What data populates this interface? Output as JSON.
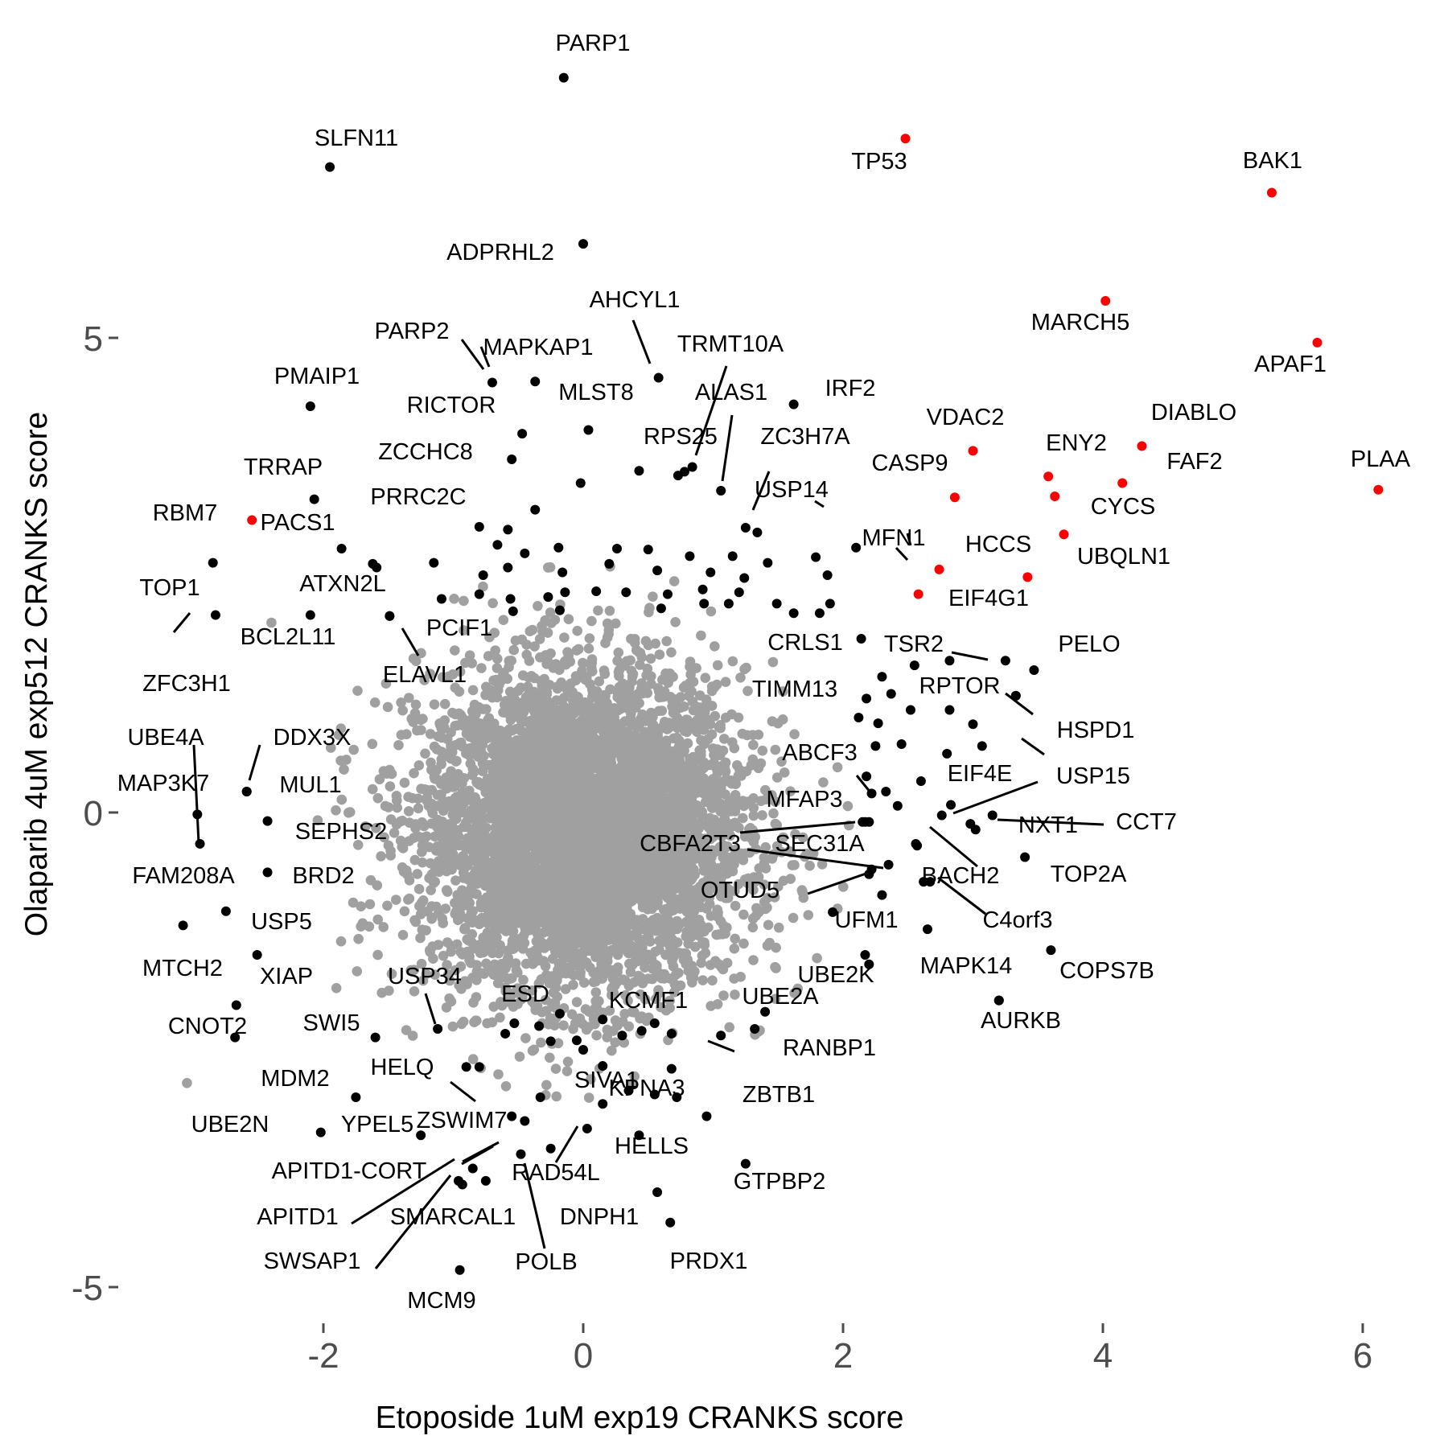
{
  "chart_data": {
    "type": "scatter",
    "xlabel": "Etoposide 1uM exp19 CRANKS score",
    "ylabel": "Olaparib 4uM exp512 CRANKS score",
    "xlim": [
      -3.2,
      6.4
    ],
    "ylim": [
      -5.4,
      8.0
    ],
    "x_ticks": [
      -2,
      0,
      2,
      4,
      6
    ],
    "x_tick_labels": [
      "-2",
      "0",
      "2",
      "4",
      "6"
    ],
    "y_ticks": [
      -5,
      0,
      5
    ],
    "y_tick_labels": [
      "-5",
      "0",
      "5"
    ],
    "grid": false,
    "legend": "none",
    "colors": {
      "background": "#ffffff",
      "significant": "#000000",
      "highlight": "#ff0000",
      "background_points": "#a0a0a0",
      "tick": "#4d4d4d"
    },
    "background_cloud": {
      "description_units": "ellipse of gray non-significant genes centered near origin",
      "center": [
        0.0,
        -0.2
      ],
      "sd": [
        0.62,
        0.85
      ],
      "count": 5200,
      "extra_points": [
        [
          -3.05,
          -2.85
        ],
        [
          -1.9,
          -1.85
        ],
        [
          -2.4,
          2.0
        ],
        [
          -1.55,
          -1.9
        ]
      ]
    },
    "series": [
      {
        "color": "#ff0000",
        "points": [
          {
            "label": "TP53",
            "x": 2.48,
            "y": 7.1
          },
          {
            "label": "BAK1",
            "x": 5.3,
            "y": 6.53
          },
          {
            "label": "MARCH5",
            "x": 4.02,
            "y": 5.39
          },
          {
            "label": "APAF1",
            "x": 5.65,
            "y": 4.95
          },
          {
            "label": "DIABLO",
            "x": 4.3,
            "y": 3.86
          },
          {
            "label": "VDAC2",
            "x": 3.0,
            "y": 3.81
          },
          {
            "label": "ENY2",
            "x": 3.58,
            "y": 3.54
          },
          {
            "label": "FAF2",
            "x": 4.15,
            "y": 3.47
          },
          {
            "label": "PLAA",
            "x": 6.12,
            "y": 3.4
          },
          {
            "label": "CASP9",
            "x": 2.86,
            "y": 3.32
          },
          {
            "label": "CYCS",
            "x": 3.63,
            "y": 3.33
          },
          {
            "label": "UBQLN1",
            "x": 3.7,
            "y": 2.93
          },
          {
            "label": "HCCS",
            "x": 3.42,
            "y": 2.48
          },
          {
            "label": "MFN1",
            "x": 2.74,
            "y": 2.56
          },
          {
            "label": "EIF4G1",
            "x": 2.58,
            "y": 2.3
          },
          {
            "label": "RBM7",
            "x": -2.55,
            "y": 3.08
          }
        ]
      },
      {
        "color": "#000000",
        "points": [
          {
            "label": "PARP1",
            "x": -0.15,
            "y": 7.74
          },
          {
            "label": "SLFN11",
            "x": -1.95,
            "y": 6.8
          },
          {
            "label": "ADPRHL2",
            "x": 0.0,
            "y": 5.99
          },
          {
            "label": "AHCYL1",
            "x": 0.58,
            "y": 4.58
          },
          {
            "label": "PARP2",
            "x": -0.7,
            "y": 4.53
          },
          {
            "label": "MAPKAP1",
            "x": -0.37,
            "y": 4.54
          },
          {
            "label": "PMAIP1",
            "x": -2.1,
            "y": 4.28
          },
          {
            "label": "IRF2",
            "x": 1.62,
            "y": 4.3
          },
          {
            "label": "RICTOR",
            "x": -0.47,
            "y": 3.99
          },
          {
            "label": "MLST8",
            "x": 0.04,
            "y": 4.03
          },
          {
            "label": "ZCCHC8",
            "x": -0.55,
            "y": 3.72
          },
          {
            "label": "RPS25",
            "x": 0.78,
            "y": 3.59
          },
          {
            "label": "TRMT10A",
            "x": 0.84,
            "y": 3.64
          },
          {
            "label": "ALAS1",
            "x": 1.06,
            "y": 3.39
          },
          {
            "label": "TRRAP",
            "x": -2.07,
            "y": 3.3
          },
          {
            "label": "PRRC2C",
            "x": -0.8,
            "y": 3.01
          },
          {
            "label": "USP14",
            "x": 1.25,
            "y": 3.0
          },
          {
            "label": "ZC3H7A",
            "x": 1.34,
            "y": 2.95
          },
          {
            "label": "PACS1",
            "x": -1.86,
            "y": 2.78
          },
          {
            "label": "TOP1",
            "x": -2.85,
            "y": 2.63
          },
          {
            "label": "ATXN2L",
            "x": -1.49,
            "y": 2.07
          },
          {
            "label": "ZFC3H1",
            "x": -2.83,
            "y": 2.08
          },
          {
            "label": "PCIF1",
            "x": -1.09,
            "y": 2.25
          },
          {
            "label": "CRLS1",
            "x": 1.82,
            "y": 2.1
          },
          {
            "label": "TSR2",
            "x": 3.25,
            "y": 1.6
          },
          {
            "label": "PELO",
            "x": 3.47,
            "y": 1.5
          },
          {
            "label": "RPTOR",
            "x": 3.33,
            "y": 1.23
          },
          {
            "label": "TIMM13",
            "x": 2.18,
            "y": 1.2
          },
          {
            "label": "ABCF3",
            "x": 2.22,
            "y": 0.2
          },
          {
            "label": "EIF4E",
            "x": 2.6,
            "y": 0.33
          },
          {
            "label": "USP15",
            "x": 2.76,
            "y": -0.03
          },
          {
            "label": "CCT7",
            "x": 3.15,
            "y": -0.03
          },
          {
            "label": "NXT1",
            "x": 3.02,
            "y": -0.18
          },
          {
            "label": "UBE4A",
            "x": -2.97,
            "y": -0.02
          },
          {
            "label": "MAP3K7",
            "x": -2.59,
            "y": 0.22
          },
          {
            "label": "DDX3X",
            "x": -2.59,
            "y": 0.22
          },
          {
            "label": "MUL1",
            "x": -2.43,
            "y": -0.09
          },
          {
            "label": "MFAP3",
            "x": 2.2,
            "y": -0.1
          },
          {
            "label": "CBFA2T3",
            "x": 2.15,
            "y": -0.1
          },
          {
            "label": "BACH2",
            "x": 2.56,
            "y": -0.33
          },
          {
            "label": "SEC31A",
            "x": 2.35,
            "y": -0.55
          },
          {
            "label": "TOP2A",
            "x": 3.4,
            "y": -0.47
          },
          {
            "label": "FAM208A",
            "x": -2.95,
            "y": -0.33
          },
          {
            "label": "SEPHS2",
            "x": -2.43,
            "y": -0.63
          },
          {
            "label": "BRD2",
            "x": -2.75,
            "y": -1.04
          },
          {
            "label": "OTUD5",
            "x": 2.22,
            "y": -0.6
          },
          {
            "label": "C4orf3",
            "x": 2.67,
            "y": -0.73
          },
          {
            "label": "USP5",
            "x": -3.08,
            "y": -1.19
          },
          {
            "label": "UFM1",
            "x": 2.65,
            "y": -1.23
          },
          {
            "label": "COPS7B",
            "x": 3.6,
            "y": -1.45
          },
          {
            "label": "MTCH2",
            "x": -2.51,
            "y": -1.5
          },
          {
            "label": "UBE2K",
            "x": 2.17,
            "y": -1.5
          },
          {
            "label": "XIAP",
            "x": -2.67,
            "y": -2.03
          },
          {
            "label": "MAPK14",
            "x": 3.2,
            "y": -1.98
          },
          {
            "label": "USP34",
            "x": -1.12,
            "y": -2.28
          },
          {
            "label": "ESD",
            "x": -0.53,
            "y": -2.22
          },
          {
            "label": "KCMF1",
            "x": 0.55,
            "y": -2.22
          },
          {
            "label": "UBE2A",
            "x": 1.32,
            "y": -2.28
          },
          {
            "label": "AURKB",
            "x": 3.2,
            "y": -1.98
          },
          {
            "label": "RANBP1",
            "x": 1.06,
            "y": -2.35
          },
          {
            "label": "CNOT2",
            "x": -2.68,
            "y": -2.37
          },
          {
            "label": "SWI5",
            "x": -1.6,
            "y": -2.37
          },
          {
            "label": "HELQ",
            "x": -0.8,
            "y": -2.68
          },
          {
            "label": "MDM2",
            "x": -1.75,
            "y": -3.0
          },
          {
            "label": "SIVA1",
            "x": 0.15,
            "y": -2.67
          },
          {
            "label": "KPNA3",
            "x": 0.68,
            "y": -2.7
          },
          {
            "label": "ZBTB1",
            "x": 0.95,
            "y": -3.2
          },
          {
            "label": "UBE2N",
            "x": -2.02,
            "y": -3.37
          },
          {
            "label": "YPEL5",
            "x": -1.25,
            "y": -3.4
          },
          {
            "label": "ZSWIM7",
            "x": -0.55,
            "y": -3.2
          },
          {
            "label": "HELLS",
            "x": 0.03,
            "y": -3.33
          },
          {
            "label": "APITD1-CORT",
            "x": -0.85,
            "y": -3.75
          },
          {
            "label": "RAD54L",
            "x": -0.25,
            "y": -3.54
          },
          {
            "label": "GTPBP2",
            "x": 1.25,
            "y": -3.7
          },
          {
            "label": "APITD1",
            "x": -0.96,
            "y": -3.88
          },
          {
            "label": "SMARCAL1",
            "x": -0.75,
            "y": -3.88
          },
          {
            "label": "DNPH1",
            "x": 0.57,
            "y": -4.0
          },
          {
            "label": "SWSAP1",
            "x": -0.93,
            "y": -3.92
          },
          {
            "label": "POLB",
            "x": -0.48,
            "y": -3.6
          },
          {
            "label": "PRDX1",
            "x": 0.67,
            "y": -4.32
          },
          {
            "label": "MCM9",
            "x": -0.95,
            "y": -4.82
          },
          {
            "label": "ELAVL1",
            "x": -1.49,
            "y": 2.07
          },
          {
            "label": "BCL2L11",
            "x": -2.1,
            "y": 2.08
          },
          {
            "label": "HSPD1",
            "x": 3.33,
            "y": 1.23
          }
        ]
      }
    ],
    "unlabeled_black_points": [
      [
        0.43,
        3.6
      ],
      [
        0.73,
        3.55
      ],
      [
        -0.02,
        3.47
      ],
      [
        -0.37,
        3.19
      ],
      [
        -0.58,
        2.98
      ],
      [
        -0.66,
        2.82
      ],
      [
        -0.45,
        2.73
      ],
      [
        -0.19,
        2.79
      ],
      [
        0.26,
        2.78
      ],
      [
        0.5,
        2.77
      ],
      [
        0.82,
        2.7
      ],
      [
        1.15,
        2.7
      ],
      [
        1.42,
        2.63
      ],
      [
        1.79,
        2.69
      ],
      [
        2.1,
        2.79
      ],
      [
        -1.59,
        2.58
      ],
      [
        -1.62,
        2.62
      ],
      [
        -1.15,
        2.63
      ],
      [
        -0.77,
        2.5
      ],
      [
        -0.58,
        2.58
      ],
      [
        -0.16,
        2.53
      ],
      [
        0.2,
        2.62
      ],
      [
        0.57,
        2.55
      ],
      [
        0.98,
        2.53
      ],
      [
        1.24,
        2.47
      ],
      [
        1.88,
        2.5
      ],
      [
        -0.8,
        2.3
      ],
      [
        -0.56,
        2.25
      ],
      [
        -0.27,
        2.27
      ],
      [
        -0.14,
        2.32
      ],
      [
        0.1,
        2.33
      ],
      [
        0.33,
        2.32
      ],
      [
        0.65,
        2.3
      ],
      [
        0.92,
        2.35
      ],
      [
        1.2,
        2.32
      ],
      [
        1.49,
        2.2
      ],
      [
        1.62,
        2.1
      ],
      [
        1.9,
        2.2
      ],
      [
        -0.54,
        2.12
      ],
      [
        -0.18,
        2.13
      ],
      [
        0.6,
        2.15
      ],
      [
        0.93,
        2.2
      ],
      [
        1.12,
        2.2
      ],
      [
        2.14,
        1.83
      ],
      [
        2.3,
        1.43
      ],
      [
        2.55,
        1.55
      ],
      [
        2.82,
        1.6
      ],
      [
        2.37,
        1.25
      ],
      [
        2.12,
        1.0
      ],
      [
        2.27,
        0.94
      ],
      [
        2.52,
        1.08
      ],
      [
        2.82,
        1.08
      ],
      [
        3.0,
        0.93
      ],
      [
        2.25,
        0.7
      ],
      [
        2.45,
        0.72
      ],
      [
        2.8,
        0.62
      ],
      [
        3.07,
        0.7
      ],
      [
        2.18,
        0.38
      ],
      [
        2.33,
        0.22
      ],
      [
        2.42,
        0.07
      ],
      [
        2.83,
        0.08
      ],
      [
        2.17,
        -0.1
      ],
      [
        2.57,
        -0.35
      ],
      [
        2.98,
        -0.12
      ],
      [
        2.2,
        -0.65
      ],
      [
        2.3,
        -0.87
      ],
      [
        2.62,
        -0.73
      ],
      [
        1.92,
        -1.05
      ],
      [
        2.2,
        -1.6
      ],
      [
        1.4,
        -2.1
      ],
      [
        0.45,
        -2.3
      ],
      [
        0.68,
        -2.33
      ],
      [
        -0.34,
        -2.25
      ],
      [
        -0.18,
        -2.12
      ],
      [
        0.15,
        -2.18
      ],
      [
        -0.6,
        -2.33
      ],
      [
        -0.05,
        -2.4
      ],
      [
        -0.25,
        -2.41
      ],
      [
        0.0,
        -2.5
      ],
      [
        0.3,
        -2.35
      ],
      [
        -0.9,
        -2.68
      ],
      [
        0.35,
        -2.93
      ],
      [
        0.55,
        -2.97
      ],
      [
        0.15,
        -3.07
      ],
      [
        -0.33,
        -3.0
      ],
      [
        0.72,
        -3.0
      ],
      [
        0.43,
        -3.4
      ],
      [
        -0.45,
        -3.25
      ]
    ]
  }
}
